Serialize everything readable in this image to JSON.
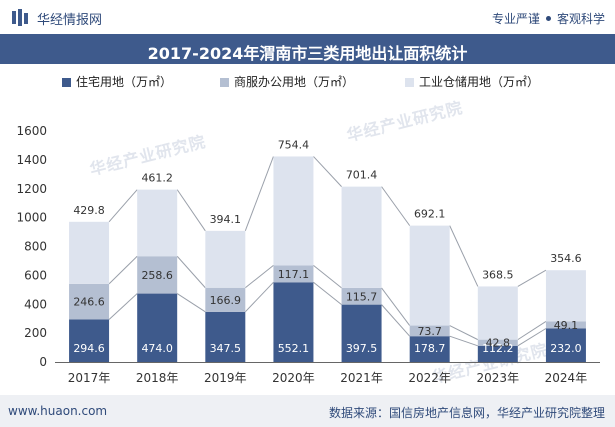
{
  "header": {
    "brand": "华经情报网",
    "tag1": "专业严谨",
    "tag2": "客观科学"
  },
  "footer": {
    "site": "www.huaon.com",
    "source": "数据来源：国信房地产信息网，华经产业研究院整理"
  },
  "watermark": "华经产业研究院",
  "colors": {
    "residential": "#3e5a8c",
    "commercial": "#b4bfd2",
    "industrial": "#dde3ee",
    "connector": "#9aa0aa"
  },
  "chart_data": {
    "type": "bar",
    "stacked": true,
    "title": "2017-2024年渭南市三类用地出让面积统计",
    "categories": [
      "2017年",
      "2018年",
      "2019年",
      "2020年",
      "2021年",
      "2022年",
      "2023年",
      "2024年"
    ],
    "series": [
      {
        "name": "住宅用地（万㎡）",
        "values": [
          294.6,
          474.0,
          347.5,
          552.1,
          397.5,
          178.7,
          112.2,
          232.0
        ]
      },
      {
        "name": "商服办公用地（万㎡）",
        "values": [
          246.6,
          258.6,
          166.9,
          117.1,
          115.7,
          73.7,
          42.8,
          49.1
        ]
      },
      {
        "name": "工业仓储用地（万㎡）",
        "values": [
          429.8,
          461.2,
          394.1,
          754.4,
          701.4,
          692.1,
          368.5,
          354.6
        ]
      }
    ],
    "ylim": [
      0,
      1600
    ],
    "yticks": [
      0,
      200,
      400,
      600,
      800,
      1000,
      1200,
      1400,
      1600
    ],
    "legend_position": "top",
    "grid": false
  }
}
